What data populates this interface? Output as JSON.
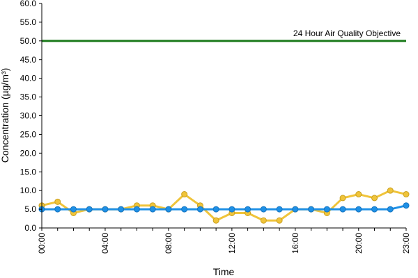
{
  "chart_data": {
    "type": "line",
    "title": "",
    "xlabel": "Time",
    "ylabel": "Concentration (µg/m³)",
    "ylim": [
      0,
      60
    ],
    "yticks": [
      "0.0",
      "5.0",
      "10.0",
      "15.0",
      "20.0",
      "25.0",
      "30.0",
      "35.0",
      "40.0",
      "45.0",
      "50.0",
      "55.0",
      "60.0"
    ],
    "xticks": [
      "00:00",
      "04:00",
      "08:00",
      "12:00",
      "16:00",
      "20:00",
      "23:00"
    ],
    "x": [
      "00:00",
      "01:00",
      "02:00",
      "03:00",
      "04:00",
      "05:00",
      "06:00",
      "07:00",
      "08:00",
      "09:00",
      "10:00",
      "11:00",
      "12:00",
      "13:00",
      "14:00",
      "15:00",
      "16:00",
      "17:00",
      "18:00",
      "19:00",
      "20:00",
      "21:00",
      "22:00",
      "23:00"
    ],
    "series": [
      {
        "color": "#f0c43a",
        "values": [
          6,
          7,
          4,
          5,
          5,
          5,
          6,
          6,
          5,
          9,
          6,
          2,
          4,
          4,
          2,
          2,
          5,
          5,
          4,
          8,
          9,
          8,
          10,
          9
        ]
      },
      {
        "color": "#1e90e6",
        "values": [
          5,
          5,
          5,
          5,
          5,
          5,
          5,
          5,
          5,
          5,
          5,
          5,
          5,
          5,
          5,
          5,
          5,
          5,
          5,
          5,
          5,
          5,
          5,
          6
        ]
      }
    ],
    "reference_line": {
      "label": "24 Hour Air Quality Objective",
      "value": 50,
      "color": "#1a7a1a"
    },
    "grid": false,
    "legend": "none"
  }
}
